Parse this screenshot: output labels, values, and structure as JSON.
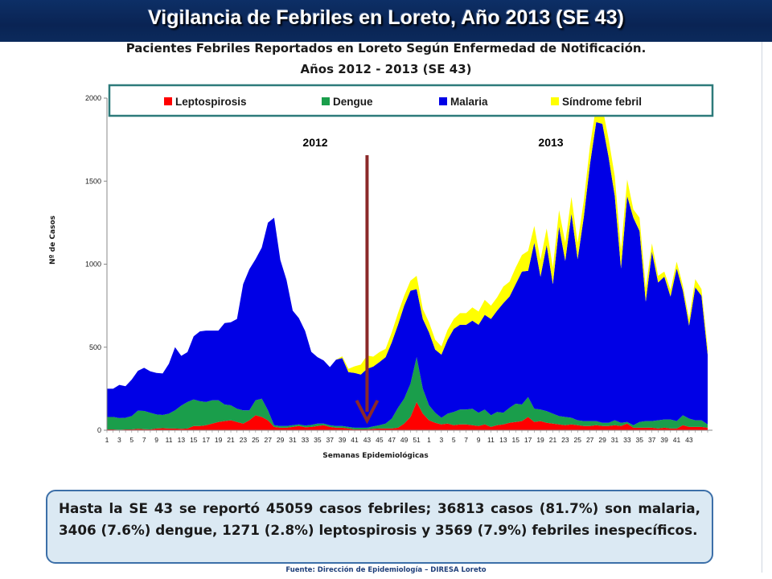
{
  "header": {
    "title": "Vigilancia de Febriles en Loreto, Año 2013 (SE 43)"
  },
  "chart_title_line1": "Pacientes Febriles Reportados en Loreto Según Enfermedad de Notificación.",
  "chart_title_line2": "Años 2012 - 2013 (SE 43)",
  "chart_data": {
    "type": "area",
    "stacked": true,
    "ylabel": "Nº de Casos",
    "xlabel": "Semanas Epidemiológicas",
    "ylim": [
      0,
      2000
    ],
    "yticks": [
      0,
      500,
      1000,
      1500,
      2000
    ],
    "grid": false,
    "legend_position": "top",
    "x_tick_labels": [
      "1",
      "3",
      "5",
      "7",
      "9",
      "11",
      "13",
      "15",
      "17",
      "19",
      "21",
      "23",
      "25",
      "27",
      "29",
      "31",
      "33",
      "35",
      "37",
      "39",
      "41",
      "43",
      "45",
      "47",
      "49",
      "51",
      "1",
      "3",
      "5",
      "7",
      "9",
      "11",
      "13",
      "15",
      "17",
      "19",
      "21",
      "23",
      "25",
      "27",
      "29",
      "31",
      "33",
      "35",
      "37",
      "39",
      "41",
      "43"
    ],
    "annotations": {
      "year_left": "2012",
      "year_right": "2013",
      "divider_after_week": "2012 SE 43"
    },
    "colors": {
      "Leptospirosis": "#ff0000",
      "Dengue": "#1a9e4b",
      "Malaria": "#0000e6",
      "Síndrome febril": "#ffff00"
    },
    "series": [
      {
        "name": "Leptospirosis",
        "values": [
          5,
          5,
          3,
          5,
          5,
          8,
          6,
          5,
          10,
          12,
          10,
          10,
          8,
          10,
          25,
          25,
          30,
          40,
          50,
          55,
          60,
          50,
          40,
          60,
          90,
          80,
          60,
          20,
          15,
          15,
          20,
          25,
          18,
          20,
          25,
          30,
          20,
          15,
          15,
          10,
          5,
          5,
          5,
          8,
          10,
          10,
          10,
          15,
          40,
          80,
          170,
          100,
          60,
          45,
          35,
          40,
          30,
          35,
          35,
          30,
          25,
          35,
          20,
          30,
          35,
          45,
          50,
          55,
          80,
          50,
          55,
          45,
          40,
          35,
          30,
          35,
          30,
          25,
          25,
          30,
          25,
          25,
          30,
          25,
          40,
          15,
          15,
          15,
          15,
          10,
          15,
          10,
          10,
          30,
          20,
          20,
          20,
          15
        ]
      },
      {
        "name": "Dengue",
        "values": [
          75,
          75,
          70,
          70,
          80,
          110,
          110,
          100,
          85,
          80,
          90,
          110,
          140,
          160,
          160,
          150,
          140,
          140,
          130,
          100,
          90,
          80,
          80,
          60,
          90,
          110,
          60,
          10,
          10,
          10,
          10,
          10,
          10,
          12,
          15,
          10,
          10,
          10,
          10,
          10,
          10,
          10,
          10,
          15,
          20,
          30,
          60,
          120,
          150,
          200,
          270,
          150,
          90,
          60,
          40,
          60,
          80,
          90,
          90,
          100,
          80,
          90,
          70,
          80,
          70,
          90,
          110,
          100,
          120,
          80,
          70,
          70,
          60,
          50,
          50,
          40,
          30,
          30,
          30,
          25,
          20,
          20,
          30,
          20,
          10,
          15,
          35,
          40,
          40,
          50,
          50,
          55,
          45,
          60,
          50,
          40,
          40,
          20
        ]
      },
      {
        "name": "Malaria",
        "values": [
          170,
          170,
          200,
          190,
          220,
          240,
          260,
          250,
          250,
          250,
          300,
          380,
          300,
          300,
          380,
          420,
          430,
          420,
          420,
          490,
          500,
          540,
          760,
          850,
          850,
          910,
          1130,
          1250,
          1000,
          880,
          690,
          640,
          570,
          440,
          400,
          380,
          350,
          400,
          410,
          330,
          330,
          320,
          355,
          360,
          380,
          400,
          460,
          500,
          560,
          560,
          410,
          420,
          440,
          380,
          380,
          445,
          500,
          510,
          510,
          530,
          530,
          570,
          580,
          610,
          660,
          670,
          720,
          800,
          760,
          1000,
          800,
          1000,
          780,
          1140,
          940,
          1230,
          970,
          1230,
          1550,
          1800,
          1800,
          1600,
          1350,
          930,
          1360,
          1250,
          1150,
          720,
          1020,
          830,
          860,
          740,
          920,
          750,
          560,
          800,
          750,
          420
        ]
      },
      {
        "name": "Síndrome febril",
        "values": [
          0,
          0,
          0,
          0,
          0,
          0,
          0,
          0,
          0,
          0,
          0,
          0,
          0,
          0,
          0,
          0,
          0,
          0,
          0,
          0,
          0,
          0,
          0,
          0,
          0,
          0,
          0,
          0,
          0,
          0,
          0,
          0,
          0,
          0,
          0,
          0,
          0,
          0,
          10,
          20,
          40,
          60,
          80,
          60,
          60,
          50,
          60,
          70,
          60,
          60,
          80,
          60,
          60,
          60,
          50,
          60,
          60,
          70,
          70,
          80,
          80,
          90,
          80,
          80,
          100,
          90,
          100,
          100,
          120,
          100,
          100,
          100,
          100,
          100,
          110,
          100,
          100,
          100,
          110,
          100,
          100,
          110,
          120,
          110,
          100,
          50,
          80,
          80,
          50,
          40,
          30,
          40,
          40,
          30,
          40,
          50,
          40,
          40
        ]
      }
    ]
  },
  "summary_text": "Hasta la SE 43 se reportó 45059 casos febriles; 36813 casos (81.7%) son malaria, 3406 (7.6%) dengue, 1271 (2.8%) leptospirosis y 3569 (7.9%) febriles inespecíficos.",
  "source_text": "Fuente: Dirección de Epidemiología – DIRESA Loreto"
}
